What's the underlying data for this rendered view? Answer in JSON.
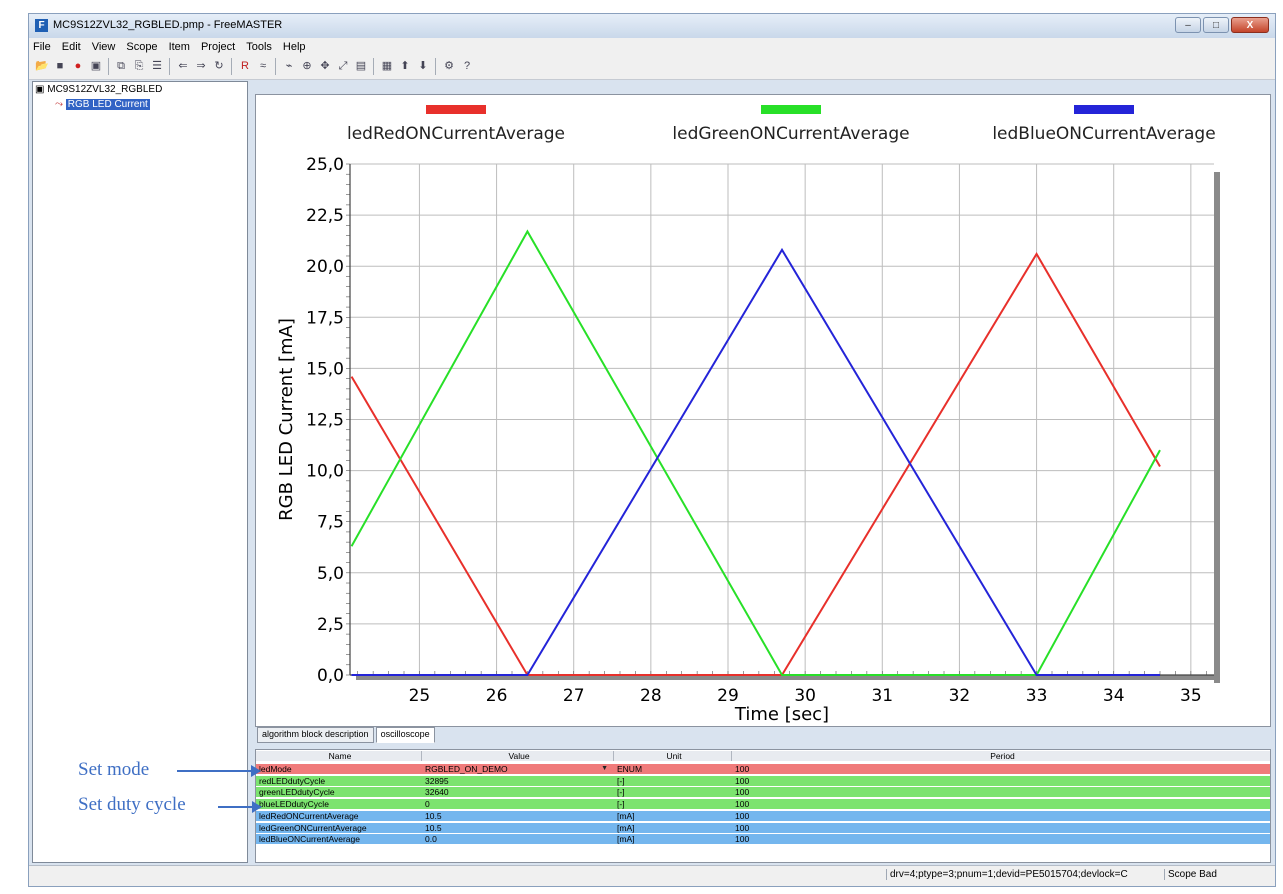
{
  "window": {
    "title": "MC9S12ZVL32_RGBLED.pmp - FreeMASTER",
    "buttons": {
      "minimize": "–",
      "maximize": "□",
      "close": "X"
    }
  },
  "menu": [
    "File",
    "Edit",
    "View",
    "Scope",
    "Item",
    "Project",
    "Tools",
    "Help"
  ],
  "toolbar_icons": [
    "open-icon",
    "save-icon",
    "stop-icon",
    "options-icon",
    "copy-icon",
    "paste-icon",
    "properties-icon",
    "back-icon",
    "forward-icon",
    "refresh-icon",
    "record-icon",
    "variable-icon",
    "scope-icon",
    "zoom-icon",
    "pan-icon",
    "fit-icon",
    "export-icon",
    "grid-icon",
    "up-icon",
    "down-icon",
    "settings-icon",
    "help-icon"
  ],
  "tree": {
    "root": "MC9S12ZVL32_RGBLED",
    "child": "RGB LED Current"
  },
  "tabs": [
    "algorithm block description",
    "oscilloscope"
  ],
  "chart_data": {
    "type": "line",
    "title": "",
    "xlabel": "Time [sec]",
    "ylabel": "RGB LED Current [mA]",
    "xlim": [
      24.1,
      35.3
    ],
    "ylim": [
      0,
      25
    ],
    "xticks": [
      "25",
      "26",
      "27",
      "28",
      "29",
      "30",
      "31",
      "32",
      "33",
      "34",
      "35"
    ],
    "yticks": [
      "0,0",
      "2,5",
      "5,0",
      "7,5",
      "10,0",
      "12,5",
      "15,0",
      "17,5",
      "20,0",
      "22,5",
      "25,0"
    ],
    "grid": true,
    "legend": "top",
    "series": [
      {
        "name": "ledRedONCurrentAverage",
        "color": "#e8302b",
        "points": [
          [
            24.12,
            14.6
          ],
          [
            26.4,
            0
          ],
          [
            29.7,
            0
          ],
          [
            33.0,
            20.6
          ],
          [
            34.6,
            10.2
          ]
        ]
      },
      {
        "name": "ledGreenONCurrentAverage",
        "color": "#28e028",
        "points": [
          [
            24.12,
            6.3
          ],
          [
            26.4,
            21.7
          ],
          [
            29.7,
            0
          ],
          [
            33.0,
            0
          ],
          [
            34.6,
            11.0
          ]
        ]
      },
      {
        "name": "ledBlueONCurrentAverage",
        "color": "#2424d8",
        "points": [
          [
            24.12,
            0
          ],
          [
            26.4,
            0
          ],
          [
            29.7,
            20.8
          ],
          [
            33.0,
            0
          ],
          [
            34.6,
            0
          ]
        ]
      }
    ]
  },
  "table": {
    "headers": [
      "Name",
      "Value",
      "Unit",
      "Period"
    ],
    "rows": [
      {
        "name": "ledMode",
        "value": "RGBLED_ON_DEMO",
        "unit": "ENUM",
        "period": "100",
        "color": "#f07b7b",
        "dropdown": true
      },
      {
        "name": "redLEDdutyCycle",
        "value": "32895",
        "unit": "[-]",
        "period": "100",
        "color": "#7ce36f"
      },
      {
        "name": "greenLEDdutyCycle",
        "value": "32640",
        "unit": "[-]",
        "period": "100",
        "color": "#7ce36f"
      },
      {
        "name": "blueLEDdutyCycle",
        "value": "0",
        "unit": "[-]",
        "period": "100",
        "color": "#7ce36f"
      },
      {
        "name": "ledRedONCurrentAverage",
        "value": "10.5",
        "unit": "[mA]",
        "period": "100",
        "color": "#74b6ee"
      },
      {
        "name": "ledGreenONCurrentAverage",
        "value": "10.5",
        "unit": "[mA]",
        "period": "100",
        "color": "#74b6ee"
      },
      {
        "name": "ledBlueONCurrentAverage",
        "value": "0.0",
        "unit": "[mA]",
        "period": "100",
        "color": "#74b6ee"
      }
    ]
  },
  "status": {
    "main": "drv=4;ptype=3;pnum=1;devid=PE5015704;devlock=C",
    "scope": "Scope Bad"
  },
  "annotations": {
    "set_mode": "Set mode",
    "set_duty_cycle": "Set duty cycle"
  }
}
